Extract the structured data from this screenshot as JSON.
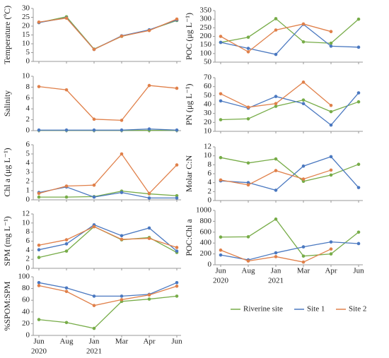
{
  "categories": [
    "Jun",
    "Aug",
    "Jan",
    "Mar",
    "Apr",
    "Jun"
  ],
  "years": [
    "2020",
    null,
    "2021",
    null,
    null,
    null
  ],
  "legend": [
    {
      "name": "Riverine site",
      "color": "#77ac48"
    },
    {
      "name": "Site 1",
      "color": "#4a78c0"
    },
    {
      "name": "Site 2",
      "color": "#e0804a"
    }
  ],
  "chart_data": [
    {
      "type": "line",
      "ylabel": "Temperature (ºC)",
      "ylim": [
        0,
        30
      ],
      "yticks": [
        0,
        5,
        10,
        15,
        20,
        25,
        30
      ],
      "series": [
        {
          "values": [
            22,
            25.3,
            7,
            14.2,
            17.8,
            23.2
          ]
        },
        {
          "values": [
            22,
            24.7,
            6.8,
            14.5,
            17.9,
            23.5
          ]
        },
        {
          "values": [
            22.3,
            24.5,
            6.8,
            14.3,
            17.5,
            24
          ]
        }
      ]
    },
    {
      "type": "line",
      "ylabel": "Salinity",
      "ylim": [
        0,
        10
      ],
      "yticks": [
        0,
        2,
        4,
        6,
        8,
        10
      ],
      "series": [
        {
          "values": [
            0.05,
            0.05,
            0.05,
            0.05,
            0.05,
            0.05
          ]
        },
        {
          "values": [
            0.1,
            0.1,
            0.1,
            0.1,
            0.3,
            0.1
          ]
        },
        {
          "values": [
            8.1,
            7.5,
            2.1,
            1.9,
            8.3,
            7.8
          ]
        }
      ]
    },
    {
      "type": "line",
      "ylabel": "Chl a (μg L⁻¹)",
      "ylim": [
        0,
        6
      ],
      "yticks": [
        0,
        1,
        2,
        3,
        4,
        5,
        6
      ],
      "series": [
        {
          "values": [
            0.3,
            0.3,
            0.35,
            0.95,
            0.65,
            0.45
          ]
        },
        {
          "values": [
            0.8,
            1.4,
            0.3,
            0.8,
            0.2,
            0.2
          ]
        },
        {
          "values": [
            0.7,
            1.5,
            1.6,
            5,
            0.7,
            3.8
          ]
        }
      ]
    },
    {
      "type": "line",
      "ylabel": "SPM (mg L⁻¹)",
      "ylim": [
        0,
        12
      ],
      "yticks": [
        0,
        2,
        4,
        6,
        8,
        10,
        12
      ],
      "series": [
        {
          "values": [
            2.4,
            3.8,
            9.2,
            6.3,
            6.8,
            3.5
          ]
        },
        {
          "values": [
            4.1,
            5.4,
            9.6,
            7.2,
            8.9,
            3.8
          ]
        },
        {
          "values": [
            5.1,
            6.3,
            9.2,
            6.4,
            6.6,
            4.6
          ]
        }
      ]
    },
    {
      "type": "line",
      "ylabel": "%SPOM:SPM",
      "ylim": [
        0,
        100
      ],
      "yticks": [
        0,
        20,
        40,
        60,
        80,
        100
      ],
      "series": [
        {
          "values": [
            27,
            22,
            12,
            58,
            62,
            67
          ]
        },
        {
          "values": [
            90,
            81,
            67,
            67,
            70,
            90
          ]
        },
        {
          "values": [
            85,
            75,
            51,
            61,
            69,
            84
          ]
        }
      ]
    },
    {
      "type": "line",
      "ylabel": "POC (μg L⁻¹)",
      "ylim": [
        50,
        350
      ],
      "yticks": [
        50,
        100,
        150,
        200,
        250,
        300,
        350
      ],
      "series": [
        {
          "values": [
            165,
            195,
            303,
            168,
            160,
            300
          ]
        },
        {
          "values": [
            165,
            130,
            95,
            270,
            143,
            137
          ]
        },
        {
          "values": [
            200,
            110,
            237,
            272,
            228,
            null
          ]
        }
      ]
    },
    {
      "type": "line",
      "ylabel": "PN (μg L⁻¹)",
      "ylim": [
        10,
        70
      ],
      "yticks": [
        10,
        20,
        30,
        40,
        50,
        60,
        70
      ],
      "series": [
        {
          "values": [
            23,
            24,
            38,
            45,
            32,
            43
          ]
        },
        {
          "values": [
            44,
            36,
            49,
            41,
            17,
            53
          ]
        },
        {
          "values": [
            52,
            37,
            41,
            65,
            39,
            null
          ]
        }
      ]
    },
    {
      "type": "line",
      "ylabel": "Molar C:N",
      "ylim": [
        0,
        12
      ],
      "yticks": [
        0,
        2,
        4,
        6,
        8,
        10,
        12
      ],
      "series": [
        {
          "values": [
            9.6,
            8.4,
            9.3,
            4.3,
            5.7,
            8.1
          ]
        },
        {
          "values": [
            4.4,
            4.0,
            2.3,
            7.7,
            9.8,
            2.9
          ]
        },
        {
          "values": [
            4.6,
            3.5,
            6.7,
            4.8,
            6.8,
            null
          ]
        }
      ]
    },
    {
      "type": "line",
      "ylabel": "POC:Chl a",
      "ylim": [
        0,
        1000
      ],
      "yticks": [
        0,
        200,
        400,
        600,
        800,
        1000
      ],
      "series": [
        {
          "values": [
            510,
            515,
            840,
            160,
            200,
            600
          ]
        },
        {
          "values": [
            180,
            90,
            220,
            330,
            420,
            390
          ]
        },
        {
          "values": [
            270,
            70,
            150,
            50,
            290,
            null
          ]
        }
      ]
    }
  ]
}
